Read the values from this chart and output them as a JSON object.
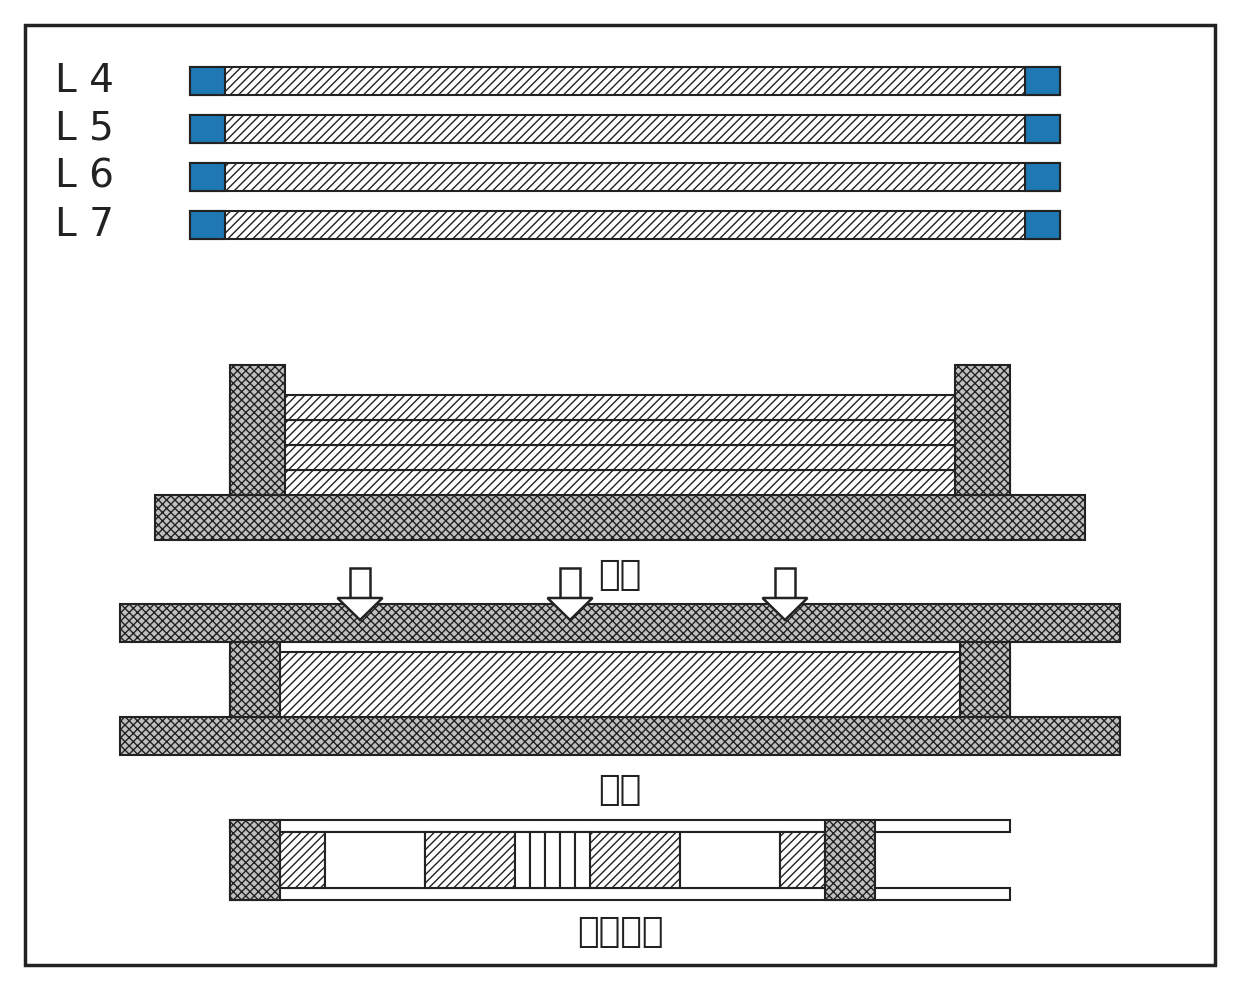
{
  "bg_color": "#ffffff",
  "border_color": "#222222",
  "labels": [
    "L 4",
    "L 5",
    "L 6",
    "L 7"
  ],
  "label_fontsize": 28,
  "section_labels": [
    "叠层",
    "层压",
    "数控加工"
  ],
  "section_label_fontsize": 26,
  "lc": "#222222",
  "lw": 1.5,
  "cross_bg": "#c0c0c0",
  "diag_bg": "#ffffff"
}
